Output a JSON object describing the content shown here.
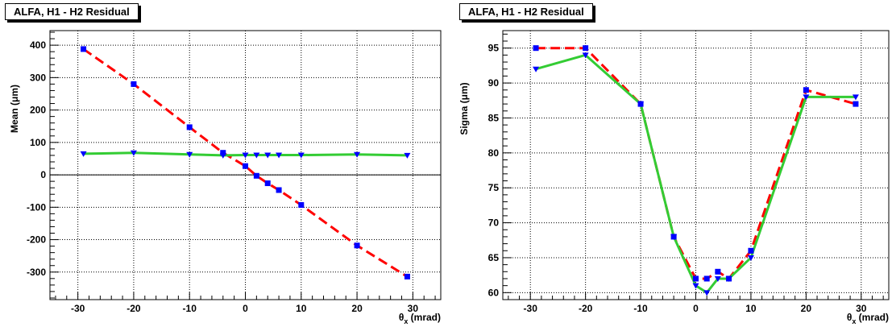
{
  "charts": [
    {
      "title": "ALFA, H1 - H2 Residual",
      "ylabel": "Mean (μm)",
      "xlabel": "θx (mrad)"
    },
    {
      "title": "ALFA, H1 - H2 Residual",
      "ylabel": "Sigma (μm)",
      "xlabel": "θx (mrad)"
    }
  ],
  "chart_data": [
    {
      "type": "line",
      "title": "ALFA, H1 - H2 Residual",
      "xlabel": "θx (mrad)",
      "ylabel": "Mean (μm)",
      "xlim": [
        -35,
        35
      ],
      "ylim": [
        -385,
        445
      ],
      "xticks": [
        -30,
        -20,
        -10,
        0,
        10,
        20,
        30
      ],
      "yticks": [
        -300,
        -200,
        -100,
        0,
        100,
        200,
        300,
        400
      ],
      "grid": true,
      "zero_line": true,
      "series": [
        {
          "color": "#ff0000",
          "dash": true,
          "marker": "square",
          "x": [
            -29,
            -20,
            -10,
            -4,
            0,
            2,
            4,
            6,
            10,
            20,
            29
          ],
          "y": [
            388,
            280,
            147,
            68,
            27,
            -3,
            -26,
            -47,
            -93,
            -218,
            -314
          ]
        },
        {
          "color": "#33cc33",
          "dash": false,
          "marker": "triangle-down",
          "x": [
            -29,
            -20,
            -10,
            -4,
            0,
            2,
            4,
            6,
            10,
            20,
            29
          ],
          "y": [
            65,
            68,
            63,
            60,
            61,
            61,
            61,
            61,
            61,
            63,
            60
          ]
        }
      ],
      "marker_color": "#0000ff"
    },
    {
      "type": "line",
      "title": "ALFA, H1 - H2 Residual",
      "xlabel": "θx (mrad)",
      "ylabel": "Sigma (μm)",
      "xlim": [
        -35,
        35
      ],
      "ylim": [
        59,
        97.5
      ],
      "xticks": [
        -30,
        -20,
        -10,
        0,
        10,
        20,
        30
      ],
      "yticks": [
        60,
        65,
        70,
        75,
        80,
        85,
        90,
        95
      ],
      "grid": true,
      "zero_line": false,
      "series": [
        {
          "color": "#ff0000",
          "dash": true,
          "marker": "square",
          "x": [
            -29,
            -20,
            -10,
            -4,
            0,
            2,
            4,
            6,
            10,
            20,
            29
          ],
          "y": [
            95,
            95,
            87,
            68,
            62,
            62,
            63,
            62,
            66,
            89,
            87
          ]
        },
        {
          "color": "#33cc33",
          "dash": false,
          "marker": "triangle-down",
          "x": [
            -29,
            -20,
            -10,
            -4,
            0,
            2,
            4,
            6,
            10,
            20,
            29
          ],
          "y": [
            92,
            94,
            87,
            68,
            61,
            60,
            62,
            62,
            65,
            88,
            88
          ]
        }
      ],
      "marker_color": "#0000ff"
    }
  ]
}
